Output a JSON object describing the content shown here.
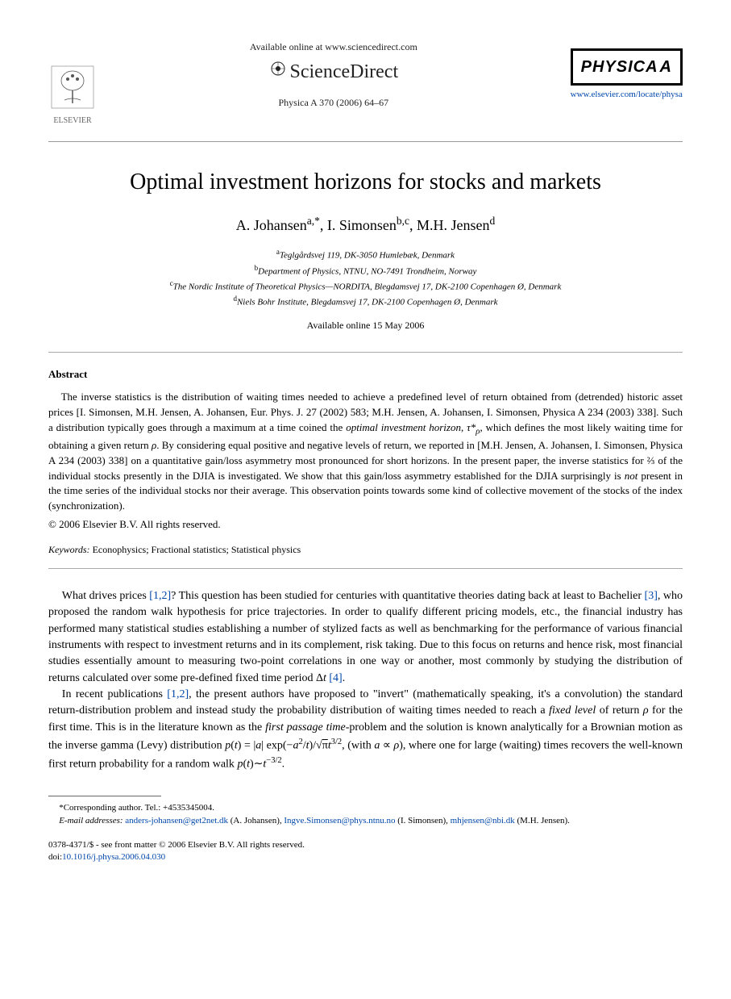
{
  "header": {
    "available_text": "Available online at www.sciencedirect.com",
    "sciencedirect": "ScienceDirect",
    "journal_ref": "Physica A 370 (2006) 64–67",
    "elsevier_label": "ELSEVIER",
    "physica_label": "PHYSICA",
    "physica_letter": "A",
    "journal_url": "www.elsevier.com/locate/physa"
  },
  "title": "Optimal investment horizons for stocks and markets",
  "authors_html": "A. Johansen<sup>a,*</sup>, I. Simonsen<sup>b,c</sup>, M.H. Jensen<sup>d</sup>",
  "affiliations": [
    "<sup>a</sup>Teglgårdsvej 119, DK-3050 Humlebæk, Denmark",
    "<sup>b</sup>Department of Physics, NTNU, NO-7491 Trondheim, Norway",
    "<sup>c</sup>The Nordic Institute of Theoretical Physics—NORDITA, Blegdamsvej 17, DK-2100 Copenhagen Ø, Denmark",
    "<sup>d</sup>Niels Bohr Institute, Blegdamsvej 17, DK-2100 Copenhagen Ø, Denmark"
  ],
  "pub_date": "Available online 15 May 2006",
  "abstract_heading": "Abstract",
  "abstract_text": "The inverse statistics is the distribution of waiting times needed to achieve a predefined level of return obtained from (detrended) historic asset prices [I. Simonsen, M.H. Jensen, A. Johansen, Eur. Phys. J. 27 (2002) 583; M.H. Jensen, A. Johansen, I. Simonsen, Physica A 234 (2003) 338]. Such a distribution typically goes through a maximum at a time coined the <i>optimal investment horizon</i>, <i>τ*<sub>ρ</sub></i>, which defines the most likely waiting time for obtaining a given return <i>ρ</i>. By considering equal positive and negative levels of return, we reported in [M.H. Jensen, A. Johansen, I. Simonsen, Physica A 234 (2003) 338] on a quantitative gain/loss asymmetry most pronounced for short horizons. In the present paper, the inverse statistics for ⅔ of the individual stocks presently in the DJIA is investigated. We show that this gain/loss asymmetry established for the DJIA surprisingly is <i>not</i> present in the time series of the individual stocks nor their average. This observation points towards some kind of collective movement of the stocks of the index (synchronization).",
  "copyright": "© 2006 Elsevier B.V. All rights reserved.",
  "keywords_label": "Keywords:",
  "keywords_text": " Econophysics; Fractional statistics; Statistical physics",
  "body": {
    "para1": "What drives prices <span class=\"ref-link\">[1,2]</span>? This question has been studied for centuries with quantitative theories dating back at least to Bachelier <span class=\"ref-link\">[3]</span>, who proposed the random walk hypothesis for price trajectories. In order to qualify different pricing models, etc., the financial industry has performed many statistical studies establishing a number of stylized facts as well as benchmarking for the performance of various financial instruments with respect to investment returns and in its complement, risk taking. Due to this focus on returns and hence risk, most financial studies essentially amount to measuring two-point correlations in one way or another, most commonly by studying the distribution of returns calculated over some pre-defined fixed time period Δ<i>t</i> <span class=\"ref-link\">[4]</span>.",
    "para2": "In recent publications <span class=\"ref-link\">[1,2]</span>, the present authors have proposed to \"invert\" (mathematically speaking, it's a convolution) the standard return-distribution problem and instead study the probability distribution of waiting times needed to reach a <i>fixed level</i> of return <i>ρ</i> for the first time. This is in the literature known as the <i>first passage time</i>-problem and the solution is known analytically for a Brownian motion as the inverse gamma (Levy) distribution <i>p</i>(<i>t</i>) = |<i>a</i>| exp(−<i>a</i><sup>2</sup>/<i>t</i>)/√<span style=\"text-decoration:overline\">π</span><i>t</i><sup>3/2</sup>, (with <i>a</i> ∝ <i>ρ</i>), where one for large (waiting) times recovers the well-known first return probability for a random walk <i>p</i>(<i>t</i>)∼<i>t</i><sup>−3/2</sup>."
  },
  "footnotes": {
    "corresponding": "*Corresponding author. Tel.: +4535345004.",
    "email_label": "E-mail addresses:",
    "emails": " <span class=\"email-link\">anders-johansen@get2net.dk</span> (A. Johansen), <span class=\"email-link\">Ingve.Simonsen@phys.ntnu.no</span> (I. Simonsen), <span class=\"email-link\">mhjensen@nbi.dk</span> (M.H. Jensen)."
  },
  "footer": {
    "issn": "0378-4371/$ - see front matter © 2006 Elsevier B.V. All rights reserved.",
    "doi_label": "doi:",
    "doi": "10.1016/j.physa.2006.04.030"
  },
  "colors": {
    "link": "#0047ab",
    "text": "#000000",
    "bg": "#ffffff"
  }
}
